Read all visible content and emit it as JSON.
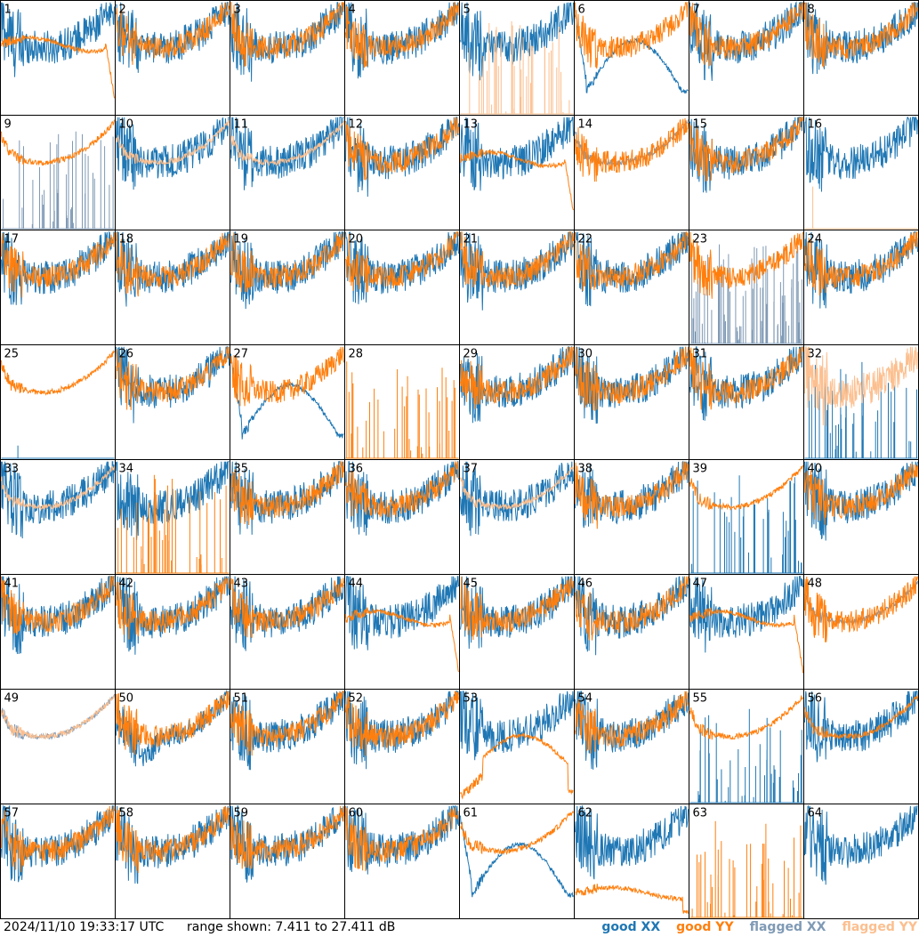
{
  "chart_data": {
    "type": "line",
    "title": "",
    "xlabel": "",
    "ylabel": "",
    "panel_count": 64,
    "grid_columns": 8,
    "grid_rows": 8,
    "panel_labels": [
      "1",
      "2",
      "3",
      "4",
      "5",
      "6",
      "7",
      "8",
      "9",
      "10",
      "11",
      "12",
      "13",
      "14",
      "15",
      "16",
      "17",
      "18",
      "19",
      "20",
      "21",
      "22",
      "23",
      "24",
      "25",
      "26",
      "27",
      "28",
      "29",
      "30",
      "31",
      "32",
      "33",
      "34",
      "35",
      "36",
      "37",
      "38",
      "39",
      "40",
      "41",
      "42",
      "43",
      "44",
      "45",
      "46",
      "47",
      "48",
      "49",
      "50",
      "51",
      "52",
      "53",
      "54",
      "55",
      "56",
      "57",
      "58",
      "59",
      "60",
      "61",
      "62",
      "63",
      "64"
    ],
    "ylim": [
      7.411,
      27.411
    ],
    "y_unit": "dB",
    "series": [
      {
        "name": "good XX",
        "color": "#1f77b4"
      },
      {
        "name": "good YY",
        "color": "#ff7f0e"
      },
      {
        "name": "flagged XX",
        "color": "#7f9ab5"
      },
      {
        "name": "flagged YY",
        "color": "#fcbf8f"
      }
    ],
    "panel_shapes": {
      "xx": {
        "1": "noisy",
        "5": "noisy",
        "6": "dip",
        "9": "spikes-flagged",
        "13": "noisy",
        "14": "smooth-flagged",
        "16": "noisy",
        "23": "noisy-flagged-box",
        "25": "spike-single",
        "27": "dip",
        "28": "absent",
        "32": "spikes",
        "33": "noisy",
        "34": "noisy",
        "39": "spikes",
        "48": "smooth-flagged",
        "49": "smooth-flagged",
        "50": "dip-mild",
        "53": "noisy",
        "55": "spikes",
        "61": "dip",
        "63": "absent",
        "64": "noisy"
      },
      "yy": {
        "1": "smooth-drop",
        "5": "spikes-flagged",
        "9": "smooth",
        "10": "smooth-flagged",
        "11": "smooth-flagged",
        "13": "smooth-drop",
        "16": "spike-single-flagged",
        "25": "smooth",
        "28": "spikes",
        "32": "noisy-flagged",
        "33": "smooth-flagged",
        "34": "spikes",
        "37": "smooth-flagged",
        "39": "smooth",
        "44": "smooth-drop",
        "47": "smooth-drop",
        "49": "smooth-flagged",
        "53": "dip-drop",
        "55": "smooth",
        "56": "smooth",
        "61": "smooth",
        "62": "low-drop",
        "63": "spikes",
        "64": "absent"
      }
    }
  },
  "footer": {
    "timestamp": "2024/11/10 19:33:17 UTC",
    "range": "range shown: 7.411 to 27.411 dB",
    "legend": [
      {
        "label": "good XX",
        "color": "#1f77b4"
      },
      {
        "label": "good YY",
        "color": "#ff7f0e"
      },
      {
        "label": "flagged XX",
        "color": "#7f9ab5"
      },
      {
        "label": "flagged YY",
        "color": "#fcbf8f"
      }
    ]
  }
}
